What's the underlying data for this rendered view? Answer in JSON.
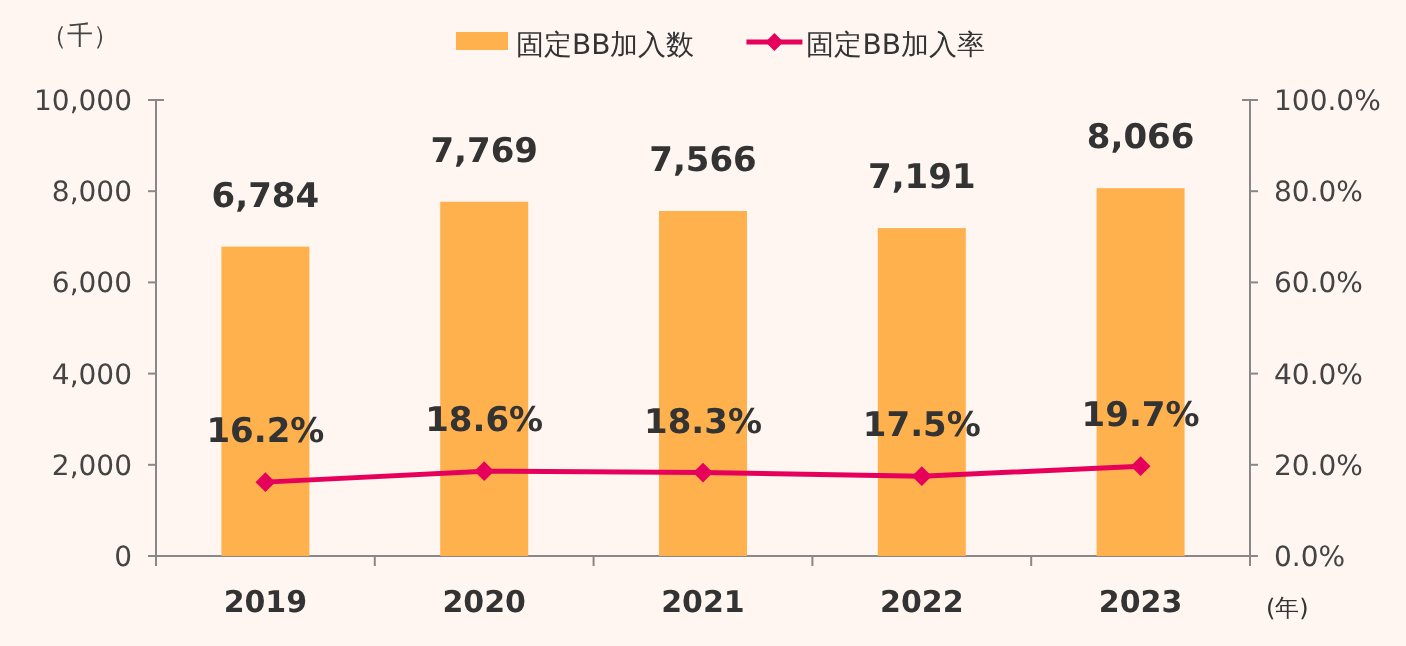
{
  "chart_data": {
    "type": "bar",
    "ylabel": "（千）",
    "xlabel": "(年)",
    "categories": [
      "2019",
      "2020",
      "2021",
      "2022",
      "2023"
    ],
    "series": [
      {
        "name": "固定BB加入数",
        "type": "bar",
        "color": "#ffb14e",
        "values": [
          6784,
          7769,
          7566,
          7191,
          8066
        ],
        "value_labels": [
          "6,784",
          "7,769",
          "7,566",
          "7,191",
          "8,066"
        ]
      },
      {
        "name": "固定BB加入率",
        "type": "line",
        "axis": "y2",
        "color": "#e6005c",
        "marker": "diamond",
        "values": [
          16.2,
          18.6,
          18.3,
          17.5,
          19.7
        ],
        "value_labels": [
          "16.2%",
          "18.6%",
          "18.3%",
          "17.5%",
          "19.7%"
        ]
      }
    ],
    "ylim": [
      0,
      10000
    ],
    "yticks": [
      {
        "value": 0,
        "label": "0"
      },
      {
        "value": 2000,
        "label": "2,000"
      },
      {
        "value": 4000,
        "label": "4,000"
      },
      {
        "value": 6000,
        "label": "6,000"
      },
      {
        "value": 8000,
        "label": "8,000"
      },
      {
        "value": 10000,
        "label": "10,000"
      }
    ],
    "y2lim": [
      0,
      100
    ],
    "y2ticks": [
      {
        "value": 0,
        "label": "0.0%"
      },
      {
        "value": 20,
        "label": "20.0%"
      },
      {
        "value": 40,
        "label": "40.0%"
      },
      {
        "value": 60,
        "label": "60.0%"
      },
      {
        "value": 80,
        "label": "80.0%"
      },
      {
        "value": 100,
        "label": "100.0%"
      }
    ],
    "grid": false,
    "legend": "top"
  }
}
